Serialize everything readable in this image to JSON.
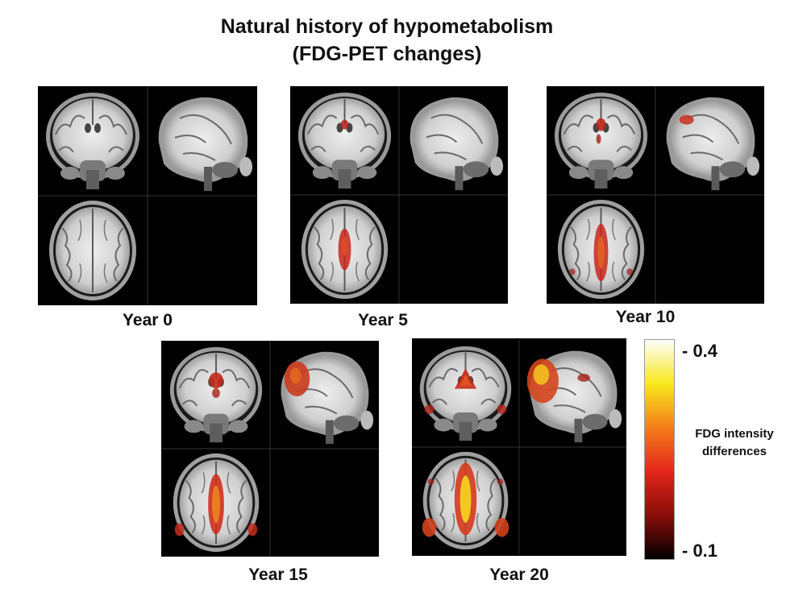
{
  "title": {
    "line1": "Natural history of hypometabolism",
    "line2": "(FDG-PET changes)"
  },
  "panels": [
    {
      "label": "Year 0",
      "level": 0
    },
    {
      "label": "Year 5",
      "level": 1
    },
    {
      "label": "Year 10",
      "level": 2
    },
    {
      "label": "Year 15",
      "level": 3
    },
    {
      "label": "Year 20",
      "level": 4
    }
  ],
  "colorbar": {
    "max_label": "- 0.4",
    "min_label": "- 0.1",
    "title_line1": "FDG intensity",
    "title_line2": "differences",
    "colors": [
      "#000000",
      "#8b0d0a",
      "#e3261b",
      "#f47d1a",
      "#f8e81c",
      "#ffffff"
    ]
  }
}
